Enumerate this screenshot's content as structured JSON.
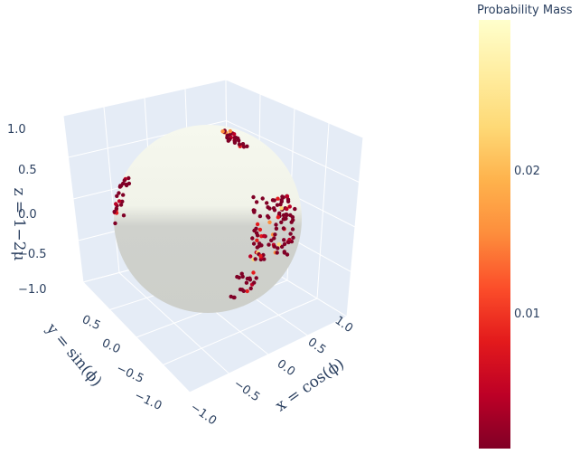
{
  "chart_data": {
    "type": "scatter",
    "subtype": "3d-scatter-on-sphere",
    "x_axis": {
      "label": "x = cos(ϕ)",
      "ticks": [
        "−1.0",
        "−0.5",
        "0.0",
        "0.5",
        "1.0"
      ],
      "range": [
        -1,
        1
      ]
    },
    "y_axis": {
      "label": "y = sin(ϕ)",
      "ticks": [
        "−1.0",
        "−0.5",
        "0.0",
        "0.5"
      ],
      "range": [
        -1,
        1
      ]
    },
    "z_axis": {
      "label": "z = 1−2μ",
      "ticks": [
        "−1.0",
        "−0.5",
        "0.0",
        "0.5",
        "1.0"
      ],
      "range": [
        -1,
        1
      ]
    },
    "colorbar": {
      "title": "Probability Mass",
      "ticks": [
        {
          "label": "0.01",
          "value": 0.01
        },
        {
          "label": "0.02",
          "value": 0.02
        }
      ],
      "range": [
        0.0005,
        0.0305
      ],
      "colorscale": [
        "#800026",
        "#bd0026",
        "#e31a1c",
        "#fc4e2a",
        "#fd8d3c",
        "#feb24c",
        "#fed976",
        "#ffeda0",
        "#ffffcc"
      ]
    },
    "grid": true,
    "background": "#e5ecf6",
    "sphere_colors": {
      "top": "#f6f8ee",
      "bottom": "#cdcfca"
    },
    "clusters": [
      {
        "region": "upper-left",
        "lat": 0.2,
        "lon": -1.3,
        "count": 25,
        "spread": 0.25
      },
      {
        "region": "right",
        "lat": -0.1,
        "lon": 0.85,
        "count": 110,
        "spread": 0.35
      },
      {
        "region": "top",
        "lat": 1.05,
        "lon": 0.55,
        "count": 25,
        "spread": 0.18
      },
      {
        "region": "bottom",
        "lat": -0.8,
        "lon": 0.6,
        "count": 20,
        "spread": 0.2
      }
    ]
  }
}
